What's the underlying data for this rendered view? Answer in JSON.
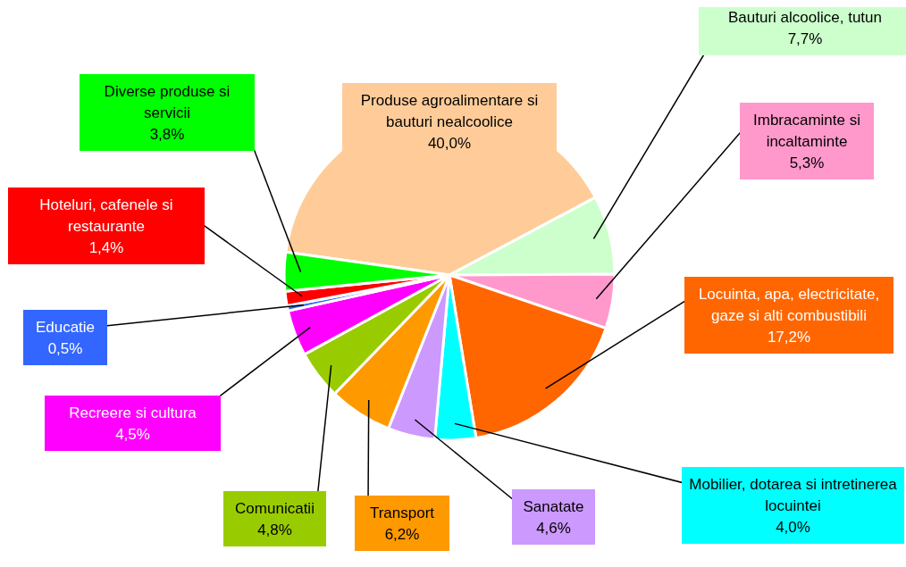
{
  "chart_data": {
    "type": "pie",
    "legend": false,
    "categories": [
      "Produse agroalimentare si bauturi nealcoolice",
      "Bauturi alcoolice, tutun",
      "Imbracaminte si incaltaminte",
      "Locuinta, apa, electricitate, gaze si alti combustibili",
      "Mobilier, dotarea si intretinerea locuintei",
      "Sanatate",
      "Transport",
      "Comunicatii",
      "Recreere si cultura",
      "Educatie",
      "Hoteluri, cafenele si restaurante",
      "Diverse produse si servicii"
    ],
    "values": [
      40.0,
      7.7,
      5.3,
      17.2,
      4.0,
      4.6,
      6.2,
      4.8,
      4.5,
      0.5,
      1.4,
      3.8
    ],
    "value_labels": [
      "40,0%",
      "7,7%",
      "5,3%",
      "17,2%",
      "4,0%",
      "4,6%",
      "6,2%",
      "4,8%",
      "4,5%",
      "0,5%",
      "1,4%",
      "3,8%"
    ],
    "colors": [
      "#ffcc99",
      "#ccffcc",
      "#ff99cc",
      "#ff6600",
      "#00ffff",
      "#cc99ff",
      "#ff9900",
      "#99cc00",
      "#ff00ff",
      "#3366ff",
      "#ff0000",
      "#00ff00"
    ]
  }
}
